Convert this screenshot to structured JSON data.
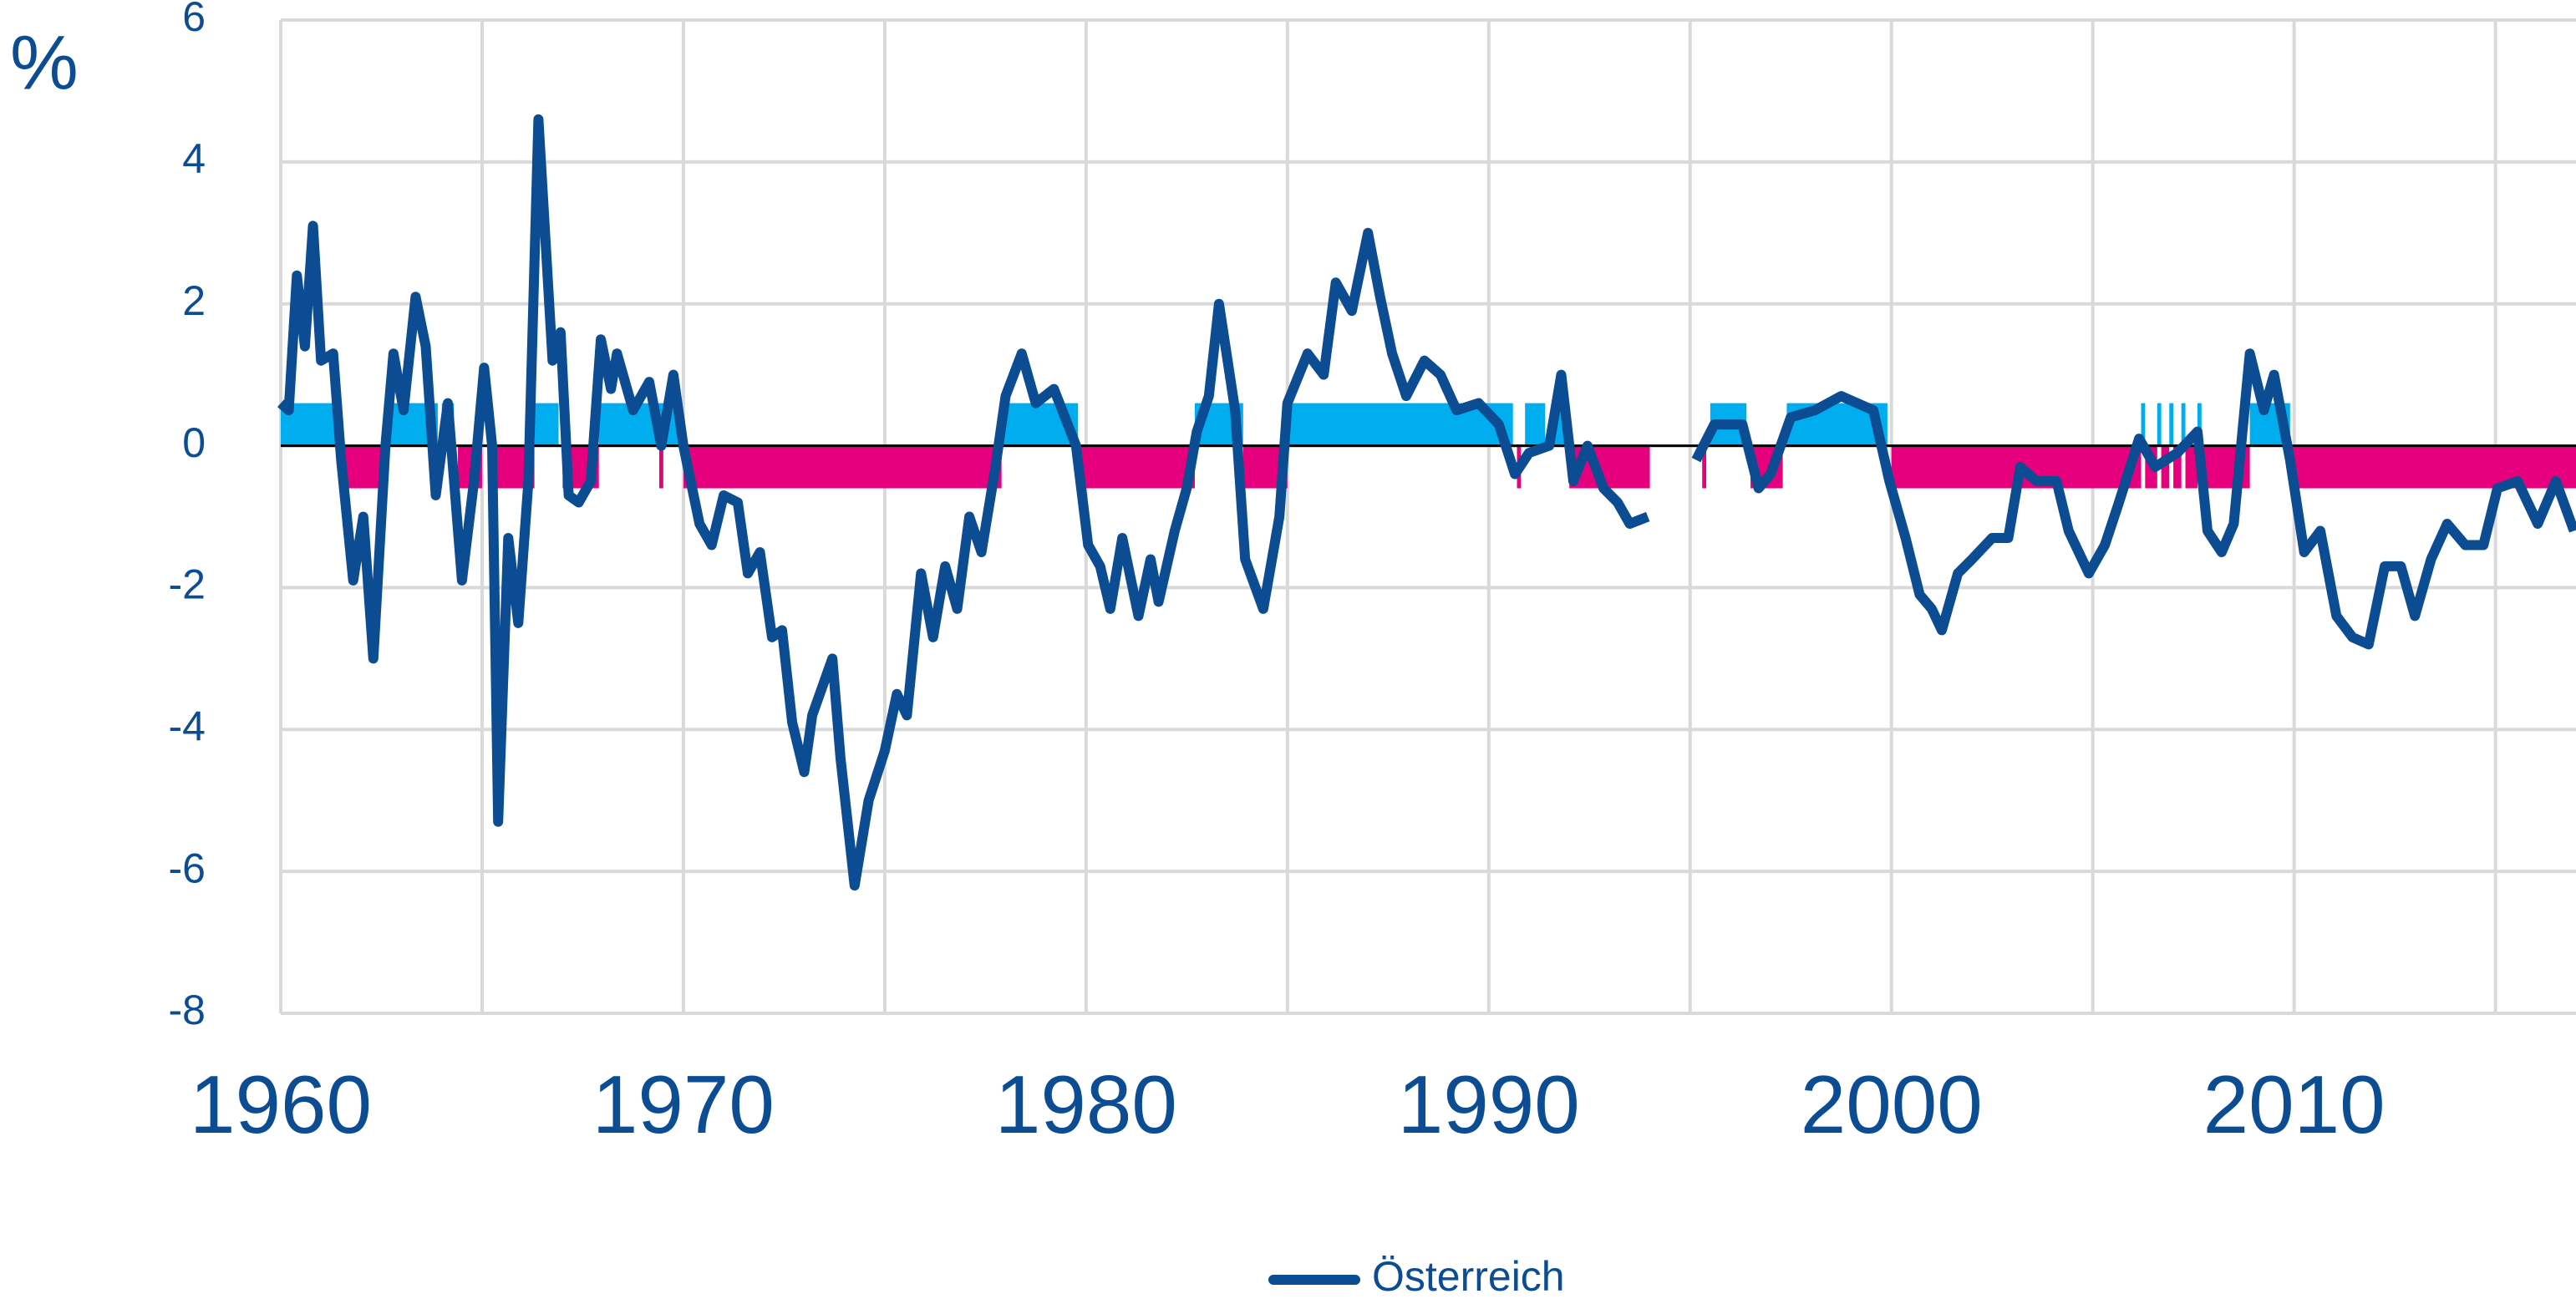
{
  "chart_data": {
    "type": "line",
    "y_unit_label": "%",
    "xlim": [
      1960,
      2017
    ],
    "xticks": [
      1960,
      1970,
      1980,
      1990,
      2000,
      2010
    ],
    "xgrid": [
      1960,
      1965,
      1970,
      1975,
      1980,
      1985,
      1990,
      1995,
      2000,
      2005,
      2010,
      2015
    ],
    "ylim": [
      -8,
      6
    ],
    "yticks": [
      -8,
      -6,
      -4,
      -2,
      0,
      2,
      4,
      6
    ],
    "grid": true,
    "x": [
      1960.0,
      1960.2,
      1960.4,
      1960.6,
      1960.8,
      1961.0,
      1961.3,
      1961.5,
      1961.8,
      1962.05,
      1962.3,
      1962.6,
      1962.8,
      1963.05,
      1963.35,
      1963.6,
      1963.85,
      1964.15,
      1964.5,
      1964.8,
      1965.05,
      1965.25,
      1965.4,
      1965.65,
      1965.9,
      1966.15,
      1966.4,
      1966.75,
      1966.95,
      1967.15,
      1967.4,
      1967.7,
      1967.95,
      1968.2,
      1968.35,
      1968.75,
      1969.15,
      1969.45,
      1969.75,
      1970.0,
      1970.4,
      1970.7,
      1971.0,
      1971.35,
      1971.6,
      1971.9,
      1972.2,
      1972.45,
      1972.7,
      1973.0,
      1973.2,
      1973.7,
      1973.9,
      1974.25,
      1974.6,
      1975.0,
      1975.3,
      1975.55,
      1975.9,
      1976.2,
      1976.5,
      1976.8,
      1977.1,
      1977.4,
      1977.75,
      1978.0,
      1978.4,
      1978.75,
      1979.2,
      1979.75,
      1980.05,
      1980.35,
      1980.6,
      1980.9,
      1981.3,
      1981.6,
      1981.8,
      1982.2,
      1982.5,
      1982.75,
      1983.05,
      1983.3,
      1983.7,
      1983.95,
      1984.4,
      1984.8,
      1985.0,
      1985.5,
      1985.9,
      1986.2,
      1986.6,
      1987.0,
      1987.3,
      1987.6,
      1987.95,
      1988.4,
      1988.8,
      1989.2,
      1989.75,
      1990.25,
      1990.65,
      1991.0,
      1991.5,
      1991.8,
      1992.1,
      1992.45,
      1992.85,
      1993.2,
      1993.5,
      1993.95,
      1994.5,
      1995.15,
      1995.6,
      1996.3,
      1996.7,
      1997.0,
      1997.5,
      1998.1,
      1998.75,
      1999.55,
      1999.95,
      2000.35,
      2000.7,
      2001.0,
      2001.25,
      2001.65,
      2002.0,
      2002.5,
      2002.9,
      2003.2,
      2003.6,
      2004.1,
      2004.4,
      2004.9,
      2005.3,
      2005.65,
      2006.15,
      2006.55,
      2007.1,
      2007.6,
      2007.85,
      2008.2,
      2008.5,
      2008.9,
      2009.25,
      2009.5,
      2009.9,
      2010.25,
      2010.65,
      2011.05,
      2011.45,
      2011.85,
      2012.25,
      2012.65,
      2013.0,
      2013.4,
      2013.8,
      2014.25,
      2014.7,
      2015.05,
      2015.55,
      2016.05,
      2016.5,
      2016.95
    ],
    "series": [
      {
        "name": "Österreich",
        "color": "#0b4c92",
        "values": [
          0.6,
          0.5,
          2.4,
          1.4,
          3.1,
          1.2,
          1.3,
          -0.2,
          -1.9,
          -1.0,
          -3.0,
          0.0,
          1.3,
          0.5,
          2.1,
          1.4,
          -0.7,
          0.6,
          -1.9,
          -0.5,
          1.1,
          0.0,
          -5.3,
          -1.3,
          -2.5,
          -0.5,
          4.6,
          1.2,
          1.6,
          -0.7,
          -0.8,
          -0.5,
          1.5,
          0.8,
          1.3,
          0.5,
          0.9,
          0.0,
          1.0,
          0.0,
          -1.1,
          -1.4,
          -0.7,
          -0.8,
          -1.8,
          -1.5,
          -2.7,
          -2.6,
          -3.9,
          -4.6,
          -3.8,
          -3.0,
          -4.4,
          -6.2,
          -5.0,
          -4.3,
          -3.5,
          -3.8,
          -1.8,
          -2.7,
          -1.7,
          -2.3,
          -1.0,
          -1.5,
          -0.3,
          0.7,
          1.3,
          0.6,
          0.8,
          0.0,
          -1.4,
          -1.7,
          -2.3,
          -1.3,
          -2.4,
          -1.6,
          -2.2,
          -1.2,
          -0.6,
          0.2,
          0.7,
          2.0,
          0.5,
          -1.6,
          -2.3,
          -1.0,
          0.6,
          1.3,
          1.0,
          2.3,
          1.9,
          3.0,
          2.1,
          1.3,
          0.7,
          1.2,
          1.0,
          0.5,
          0.6,
          0.3,
          -0.4,
          -0.1,
          0.0,
          1.0,
          -0.5,
          0.0,
          -0.6,
          -0.8,
          -1.1,
          -1.0,
          null,
          -0.2,
          0.3,
          0.3,
          -0.6,
          -0.4,
          0.4,
          0.5,
          0.7,
          0.5,
          -0.5,
          -1.3,
          -2.1,
          -2.3,
          -2.6,
          -1.8,
          -1.6,
          -1.3,
          -1.3,
          -0.3,
          -0.5,
          -0.5,
          -1.2,
          -1.8,
          -1.4,
          -0.8,
          0.1,
          -0.3,
          -0.1,
          0.2,
          -1.2,
          -1.5,
          -1.1,
          1.3,
          0.5,
          1.0,
          -0.2,
          -1.5,
          -1.2,
          -2.4,
          -2.7,
          -2.8,
          -1.7,
          -1.7,
          -2.4,
          -1.6,
          -1.1,
          -1.4,
          -1.4,
          -0.6,
          -0.5,
          -1.1,
          -0.5,
          -1.2
        ]
      }
    ],
    "band_colors": {
      "positive": "#00aeef",
      "negative": "#e6007e"
    },
    "band_start": [
      1960.0,
      1962.6,
      1964.0,
      1966.3,
      1967.9,
      1977.9,
      1982.7,
      1985.0,
      1990.9,
      1991.6,
      1995.5,
      1997.4,
      2006.2,
      2006.6,
      2006.9,
      2007.2,
      2007.6,
      2008.9,
      1961.5,
      1963.9,
      1964.4,
      1965.3,
      1967.0,
      1969.4,
      1970.0,
      1979.8,
      1983.9,
      1990.7,
      1992.0,
      1995.3,
      1996.5,
      2000.0,
      2006.3,
      2006.7,
      2007.0,
      2007.3,
      2007.7,
      2009.9
    ],
    "band_end": [
      1961.5,
      1963.9,
      1964.3,
      1966.9,
      1969.9,
      1979.8,
      1983.9,
      1990.6,
      1991.4,
      1992.0,
      1996.4,
      1999.9,
      2006.3,
      2006.7,
      2007.0,
      2007.3,
      2007.7,
      2009.9,
      1962.6,
      1964.0,
      1965.0,
      1966.3,
      1967.9,
      1969.5,
      1977.9,
      1982.7,
      1985.0,
      1990.8,
      1994.0,
      1995.4,
      1997.3,
      2006.2,
      2006.6,
      2006.9,
      2007.2,
      2007.6,
      2008.9,
      2017.0
    ],
    "band_value": [
      0.6,
      0.6,
      0.6,
      0.6,
      0.6,
      0.6,
      0.6,
      0.6,
      0.6,
      0.6,
      0.6,
      0.6,
      0.6,
      0.6,
      0.6,
      0.6,
      0.6,
      0.6,
      -0.6,
      -0.6,
      -0.6,
      -0.6,
      -0.6,
      -0.6,
      -0.6,
      -0.6,
      -0.6,
      -0.6,
      -0.6,
      -0.6,
      -0.6,
      -0.6,
      -0.6,
      -0.6,
      -0.6,
      -0.6,
      -0.6,
      -0.6
    ]
  }
}
